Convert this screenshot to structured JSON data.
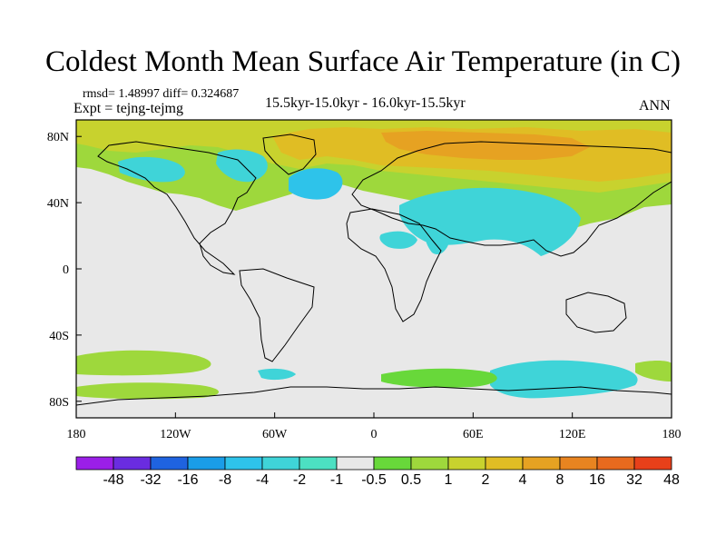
{
  "title": "Coldest Month Mean Surface Air Temperature (in C)",
  "stats": "rmsd= 1.48997 diff= 0.324687",
  "experiment": "Expt = tejng-tejmg",
  "period": "15.5kyr-15.0kyr - 16.0kyr-15.5kyr",
  "season": "ANN",
  "lon_labels": [
    "180",
    "120W",
    "60W",
    "0",
    "60E",
    "120E",
    "180"
  ],
  "lat_labels": [
    "80N",
    "40N",
    "0",
    "40S",
    "80S"
  ],
  "colorbar": {
    "colors": [
      "#9b1fe8",
      "#6a2ce0",
      "#1f63e0",
      "#1a9de8",
      "#2ec3ea",
      "#3fd4d8",
      "#4ce0c2",
      "#e8e8e8",
      "#68d83a",
      "#9ed83c",
      "#c8d22e",
      "#e0bd24",
      "#e6a222",
      "#e88420",
      "#e86a1e",
      "#e8401a"
    ],
    "labels": [
      "-48",
      "-32",
      "-16",
      "-8",
      "-4",
      "-2",
      "-1",
      "-0.5",
      "0.5",
      "1",
      "2",
      "4",
      "8",
      "16",
      "32",
      "48"
    ]
  },
  "palette": {
    "neutral": "#e8e8e8",
    "green": "#9ed83c",
    "light_green": "#68d83a",
    "yellow_green": "#c8d22e",
    "gold": "#e0bd24",
    "orange": "#e6a222",
    "cyan": "#2ec3ea",
    "teal": "#3fd4d8",
    "blue": "#1a9de8"
  }
}
